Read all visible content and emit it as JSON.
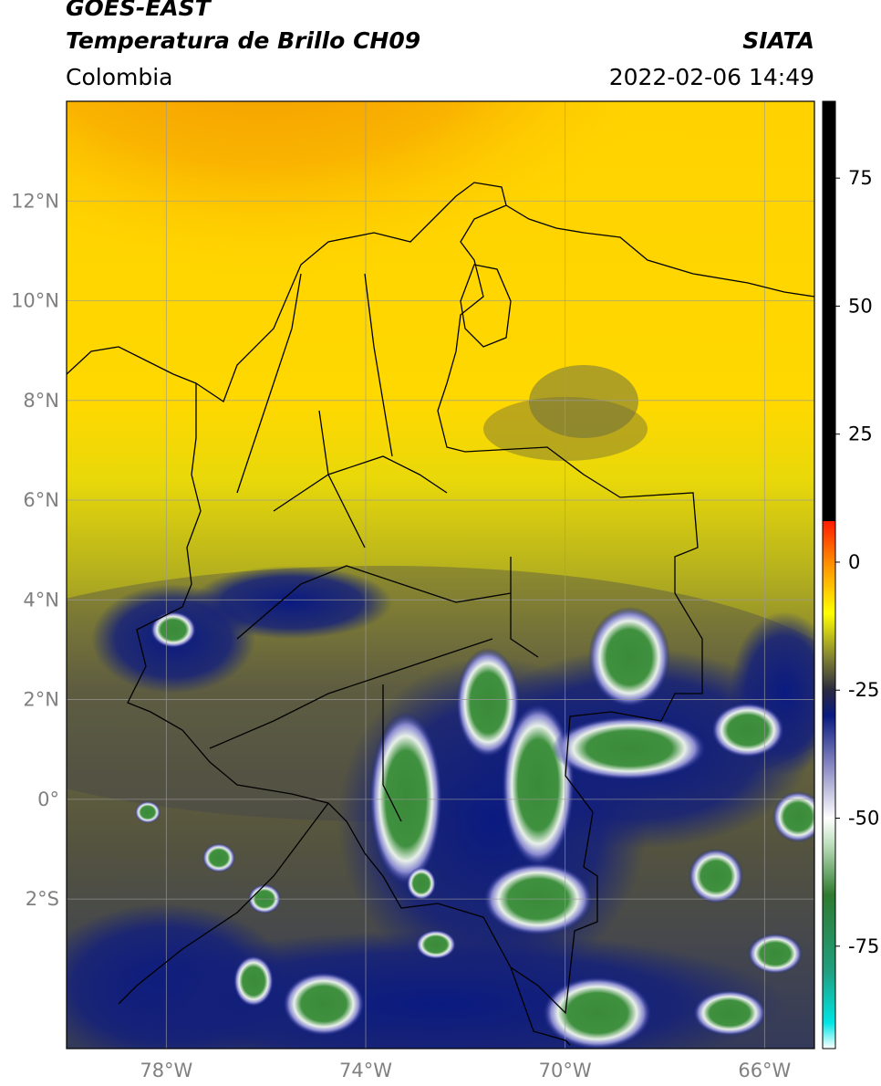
{
  "header": {
    "satellite": "GOES-EAST",
    "product": "Temperatura de Brillo CH09",
    "organization": "SIATA",
    "region": "Colombia",
    "datetime": "2022-02-06 14:49"
  },
  "map": {
    "extent": {
      "lon": [
        -80,
        -65
      ],
      "lat": [
        -5,
        14
      ]
    },
    "lat_ticks": [
      {
        "value": 12,
        "label": "12°N"
      },
      {
        "value": 10,
        "label": "10°N"
      },
      {
        "value": 8,
        "label": "8°N"
      },
      {
        "value": 6,
        "label": "6°N"
      },
      {
        "value": 4,
        "label": "4°N"
      },
      {
        "value": 2,
        "label": "2°N"
      },
      {
        "value": 0,
        "label": "0°"
      },
      {
        "value": -2,
        "label": "2°S"
      }
    ],
    "lon_ticks": [
      {
        "value": -78,
        "label": "78°W"
      },
      {
        "value": -74,
        "label": "74°W"
      },
      {
        "value": -70,
        "label": "70°W"
      },
      {
        "value": -66,
        "label": "66°W"
      }
    ],
    "gridlines": true
  },
  "colorbar": {
    "range": [
      -95,
      90
    ],
    "ticks": [
      {
        "value": 75,
        "label": "75"
      },
      {
        "value": 50,
        "label": "50"
      },
      {
        "value": 25,
        "label": "25"
      },
      {
        "value": 0,
        "label": "0"
      },
      {
        "value": -25,
        "label": "-25"
      },
      {
        "value": -50,
        "label": "-50"
      },
      {
        "value": -75,
        "label": "-75"
      }
    ],
    "stops": [
      {
        "value": -95,
        "color": "#ffffff"
      },
      {
        "value": -90,
        "color": "#00e5e5"
      },
      {
        "value": -80,
        "color": "#20a080"
      },
      {
        "value": -65,
        "color": "#2f7a2f"
      },
      {
        "value": -55,
        "color": "#bfe0bf"
      },
      {
        "value": -50,
        "color": "#ffffff"
      },
      {
        "value": -40,
        "color": "#8c8cc4"
      },
      {
        "value": -30,
        "color": "#0a1a80"
      },
      {
        "value": -25,
        "color": "#2a2a40"
      },
      {
        "value": -18,
        "color": "#8a8a30"
      },
      {
        "value": -10,
        "color": "#ffff00"
      },
      {
        "value": 0,
        "color": "#ff8c00"
      },
      {
        "value": 8,
        "color": "#ff1a00"
      },
      {
        "value": 8.01,
        "color": "#000000"
      },
      {
        "value": 90,
        "color": "#000000"
      }
    ]
  },
  "colors": {
    "warm": "#ff8c00",
    "yellow": "#ffe600",
    "olive": "#8f8f33",
    "dark": "#4f4f3f",
    "cold_blue": "#0a1a80",
    "cloud_white": "#ffffff",
    "cloud_green": "#3c8c3c"
  }
}
